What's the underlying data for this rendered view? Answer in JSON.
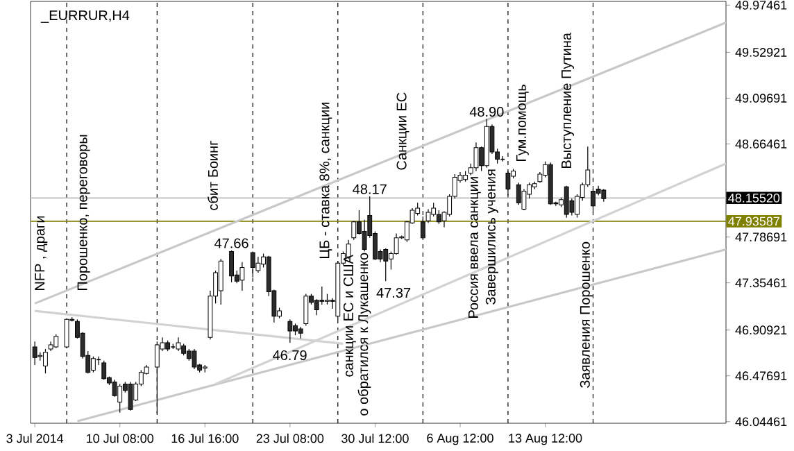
{
  "chart_data": {
    "type": "candlestick",
    "title": "_EURRUR,H4",
    "categories": [
      "3 Jul 2014",
      null,
      null,
      null,
      null,
      null,
      null,
      null,
      null,
      null,
      null,
      null,
      null,
      null,
      null,
      null,
      "10 Jul 08:00",
      null,
      null,
      null,
      null,
      null,
      null,
      null,
      null,
      null,
      null,
      null,
      null,
      null,
      null,
      null,
      "16 Jul 16:00",
      null,
      null,
      null,
      null,
      null,
      null,
      null,
      null,
      null,
      null,
      null,
      null,
      null,
      null,
      null,
      "23 Jul 08:00",
      null,
      null,
      null,
      null,
      null,
      null,
      null,
      null,
      null,
      null,
      null,
      null,
      null,
      null,
      null,
      "30 Jul 12:00",
      null,
      null,
      null,
      null,
      null,
      null,
      null,
      null,
      null,
      null,
      null,
      null,
      null,
      null,
      null,
      "6 Aug 12:00",
      null,
      null,
      null,
      null,
      null,
      null,
      null,
      null,
      null,
      null,
      null,
      null,
      null,
      null,
      null,
      "13 Aug 12:00",
      null,
      null,
      null,
      null,
      null,
      null,
      null,
      null,
      null,
      null,
      null,
      null,
      null,
      null,
      null,
      null,
      null,
      null,
      null,
      null,
      null,
      null,
      null,
      null,
      null,
      null,
      null,
      null,
      null,
      null,
      null,
      null,
      null,
      null
    ],
    "ohlc": [
      [
        46.75,
        46.8,
        46.58,
        46.65
      ],
      [
        46.66,
        46.7,
        46.62,
        46.67
      ],
      [
        46.57,
        46.73,
        46.5,
        46.7
      ],
      [
        46.73,
        46.8,
        46.71,
        46.77
      ],
      [
        46.75,
        46.87,
        46.74,
        46.85
      ],
      null,
      [
        46.75,
        47.02,
        46.74,
        47.01
      ],
      [
        47.01,
        47.03,
        46.99,
        47.0
      ],
      [
        46.99,
        47.01,
        46.83,
        46.84
      ],
      [
        46.88,
        46.89,
        46.64,
        46.66
      ],
      [
        46.67,
        46.71,
        46.5,
        46.51
      ],
      [
        46.53,
        46.66,
        46.51,
        46.64
      ],
      [
        46.63,
        46.66,
        46.58,
        46.63
      ],
      [
        46.6,
        46.62,
        46.44,
        46.45
      ],
      [
        46.46,
        46.47,
        46.39,
        46.41
      ],
      [
        46.42,
        46.44,
        46.28,
        46.29
      ],
      [
        46.23,
        46.4,
        46.13,
        46.38
      ],
      [
        46.4,
        46.42,
        46.32,
        46.34
      ],
      [
        46.4,
        46.42,
        46.15,
        46.16
      ],
      [
        46.25,
        46.42,
        46.24,
        46.4
      ],
      [
        46.4,
        46.53,
        46.38,
        46.51
      ],
      [
        46.5,
        46.58,
        46.49,
        46.56
      ],
      null,
      [
        46.56,
        46.8,
        46.12,
        46.77
      ],
      [
        46.73,
        46.84,
        46.71,
        46.79
      ],
      [
        46.79,
        46.81,
        46.71,
        46.73
      ],
      [
        46.75,
        46.78,
        46.73,
        46.75
      ],
      [
        46.73,
        46.84,
        46.71,
        46.79
      ],
      [
        46.76,
        46.78,
        46.67,
        46.69
      ],
      [
        46.71,
        46.73,
        46.62,
        46.64
      ],
      [
        46.71,
        46.73,
        46.54,
        46.56
      ],
      [
        46.58,
        46.59,
        46.51,
        46.53
      ],
      [
        46.55,
        46.58,
        46.51,
        46.56
      ],
      [
        46.84,
        47.28,
        46.82,
        47.23
      ],
      [
        47.23,
        47.47,
        47.16,
        47.45
      ],
      [
        47.28,
        47.58,
        47.15,
        47.56
      ],
      null,
      [
        47.65,
        47.66,
        47.36,
        47.42
      ],
      [
        47.43,
        47.47,
        47.35,
        47.37
      ],
      [
        47.38,
        47.55,
        47.28,
        47.5
      ],
      null,
      [
        47.64,
        47.65,
        47.41,
        47.5
      ],
      [
        47.47,
        47.6,
        47.45,
        47.54
      ],
      [
        47.53,
        47.63,
        47.5,
        47.6
      ],
      [
        47.6,
        47.61,
        47.23,
        47.27
      ],
      [
        47.28,
        47.29,
        46.98,
        47.04
      ],
      [
        47.04,
        47.12,
        47.02,
        47.09
      ],
      null,
      [
        46.99,
        47.01,
        46.79,
        46.9
      ],
      [
        46.95,
        46.97,
        46.86,
        46.9
      ],
      [
        46.92,
        46.94,
        46.83,
        46.88
      ],
      [
        46.97,
        47.25,
        46.95,
        47.23
      ],
      [
        47.23,
        47.25,
        47.15,
        47.17
      ],
      [
        47.19,
        47.2,
        47.05,
        47.1
      ],
      [
        47.19,
        47.32,
        47.15,
        47.18
      ],
      [
        47.18,
        47.25,
        47.15,
        47.19
      ],
      [
        47.19,
        47.21,
        47.11,
        47.18
      ],
      [
        47.04,
        47.56,
        47.01,
        47.54
      ],
      [
        47.54,
        47.65,
        47.52,
        47.63
      ],
      [
        47.6,
        47.76,
        47.58,
        47.72
      ],
      [
        47.78,
        47.94,
        47.76,
        47.93
      ],
      [
        47.93,
        48.04,
        47.81,
        47.82
      ],
      [
        47.84,
        47.95,
        47.65,
        47.67
      ],
      [
        47.99,
        48.17,
        47.78,
        47.8
      ],
      [
        47.82,
        47.84,
        47.57,
        47.58
      ],
      [
        47.65,
        47.67,
        47.55,
        47.58
      ],
      [
        47.67,
        47.68,
        47.37,
        47.56
      ],
      [
        47.58,
        47.65,
        47.48,
        47.63
      ],
      [
        47.63,
        47.82,
        47.62,
        47.78
      ],
      [
        47.78,
        47.8,
        47.77,
        47.79
      ],
      [
        47.76,
        47.94,
        47.74,
        47.93
      ],
      [
        47.92,
        48.06,
        47.91,
        48.04
      ],
      [
        48.01,
        48.11,
        47.99,
        48.06
      ],
      [
        47.93,
        47.98,
        47.77,
        47.78
      ],
      [
        47.94,
        48.05,
        47.92,
        48.02
      ],
      [
        48.0,
        48.11,
        47.98,
        48.06
      ],
      [
        48.0,
        48.04,
        47.91,
        47.93
      ],
      [
        47.94,
        48.03,
        47.88,
        48.02
      ],
      [
        48.0,
        48.19,
        47.98,
        48.17
      ],
      [
        48.17,
        48.38,
        48.15,
        48.35
      ],
      [
        48.32,
        48.4,
        48.3,
        48.37
      ],
      [
        48.33,
        48.41,
        48.31,
        48.37
      ],
      [
        48.39,
        48.48,
        48.37,
        48.44
      ],
      [
        48.44,
        48.68,
        48.41,
        48.63
      ],
      [
        48.63,
        48.64,
        48.41,
        48.46
      ],
      [
        48.46,
        48.9,
        48.44,
        48.83
      ],
      [
        48.83,
        48.85,
        48.57,
        48.59
      ],
      [
        48.59,
        48.62,
        48.48,
        48.52
      ],
      [
        48.52,
        48.55,
        48.5,
        48.52
      ],
      [
        48.39,
        48.41,
        48.18,
        48.24
      ],
      [
        48.36,
        48.43,
        48.34,
        48.41
      ],
      [
        48.28,
        48.3,
        48.09,
        48.11
      ],
      [
        48.05,
        48.24,
        48.04,
        48.22
      ],
      [
        48.19,
        48.3,
        48.15,
        48.28
      ],
      [
        48.26,
        48.31,
        48.24,
        48.29
      ],
      [
        48.31,
        48.4,
        48.3,
        48.38
      ],
      [
        48.37,
        48.5,
        48.35,
        48.47
      ],
      [
        48.47,
        48.49,
        48.09,
        48.1
      ],
      [
        48.11,
        48.12,
        48.08,
        48.1
      ],
      [
        48.09,
        48.16,
        48.07,
        48.14
      ],
      [
        48.26,
        48.27,
        47.97,
        48.0
      ],
      [
        48.13,
        48.15,
        47.99,
        48.02
      ],
      [
        48.0,
        48.19,
        47.97,
        48.17
      ],
      [
        48.16,
        48.3,
        48.13,
        48.28
      ],
      [
        48.28,
        48.64,
        48.26,
        48.42
      ],
      [
        48.22,
        48.24,
        48.03,
        48.08
      ],
      [
        48.24,
        48.27,
        48.18,
        48.2
      ],
      [
        48.23,
        48.24,
        48.12,
        48.15
      ],
      null,
      null,
      null,
      null,
      null,
      null,
      null,
      null,
      null,
      null,
      null,
      null,
      null,
      null,
      null,
      null,
      null,
      null,
      null,
      null,
      null,
      null,
      null
    ],
    "series": [
      {
        "type": "line",
        "color": "#c8c8c8",
        "values": [
          47.16,
          null,
          null,
          null,
          null,
          null,
          null,
          null,
          null,
          null,
          null,
          null,
          null,
          null,
          null,
          null,
          null,
          null,
          null,
          null,
          null,
          null,
          null,
          null,
          null,
          null,
          null,
          null,
          null,
          null,
          null,
          null,
          null,
          null,
          null,
          null,
          null,
          null,
          null,
          null,
          null,
          null,
          null,
          null,
          null,
          null,
          null,
          null,
          null,
          null,
          null,
          null,
          null,
          null,
          null,
          null,
          null,
          null,
          null,
          null,
          null,
          null,
          null,
          null,
          null,
          null,
          null,
          null,
          null,
          null,
          null,
          null,
          null,
          null,
          null,
          null,
          null,
          null,
          null,
          null,
          null,
          null,
          null,
          null,
          null,
          null,
          null,
          null,
          null,
          null,
          null,
          null,
          null,
          null,
          null,
          null,
          null,
          null,
          null,
          null,
          null,
          null,
          null,
          null,
          null,
          null,
          null,
          null,
          null,
          null,
          null,
          null,
          null,
          null,
          null,
          null,
          null,
          null,
          null,
          null,
          null,
          null,
          null,
          null,
          null,
          null,
          null,
          null,
          null,
          null,
          49.81
        ]
      },
      {
        "type": "line",
        "color": "#c8c8c8",
        "values": [
          null,
          null,
          null,
          null,
          null,
          null,
          null,
          null,
          46.05,
          null,
          null,
          null,
          null,
          null,
          null,
          null,
          null,
          null,
          null,
          null,
          null,
          null,
          null,
          null,
          null,
          null,
          null,
          null,
          null,
          null,
          null,
          null,
          null,
          null,
          null,
          null,
          null,
          null,
          null,
          null,
          null,
          null,
          null,
          null,
          null,
          null,
          null,
          null,
          null,
          null,
          null,
          null,
          null,
          null,
          null,
          null,
          null,
          null,
          null,
          null,
          null,
          null,
          null,
          null,
          null,
          null,
          null,
          null,
          null,
          null,
          null,
          null,
          null,
          null,
          null,
          null,
          null,
          null,
          null,
          null,
          null,
          null,
          null,
          null,
          null,
          null,
          null,
          null,
          null,
          null,
          null,
          null,
          null,
          null,
          null,
          null,
          null,
          null,
          null,
          null,
          null,
          null,
          null,
          null,
          null,
          null,
          null,
          null,
          null,
          null,
          null,
          null,
          null,
          null,
          null,
          null,
          null,
          null,
          null,
          null,
          null,
          null,
          null,
          null,
          null,
          null,
          null,
          null,
          null,
          null,
          47.67
        ]
      },
      {
        "type": "line",
        "color": "#d2d2d2",
        "values": [
          47.09,
          null,
          null,
          null,
          null,
          null,
          null,
          null,
          null,
          null,
          null,
          null,
          null,
          null,
          null,
          null,
          null,
          null,
          null,
          null,
          null,
          null,
          null,
          null,
          null,
          null,
          null,
          null,
          null,
          null,
          null,
          null,
          null,
          null,
          null,
          null,
          null,
          null,
          null,
          null,
          null,
          null,
          null,
          null,
          null,
          null,
          null,
          null,
          null,
          null,
          null,
          null,
          null,
          null,
          null,
          null,
          null,
          null,
          46.78,
          null,
          null,
          null,
          null,
          null,
          null,
          null,
          null,
          null,
          null,
          null,
          null,
          null,
          null,
          null,
          null,
          null,
          null,
          null,
          null,
          null,
          null,
          null,
          null,
          null,
          null,
          null,
          null,
          null,
          null,
          null,
          null,
          null,
          null,
          null,
          null,
          null,
          null,
          null,
          null,
          null,
          null,
          null,
          null,
          null,
          null,
          null,
          null,
          null,
          null,
          null,
          null,
          null,
          null,
          null,
          null,
          null,
          null,
          null,
          null,
          null,
          null,
          null,
          null,
          null,
          null,
          null,
          null,
          null,
          null,
          null,
          null
        ]
      },
      {
        "type": "line",
        "color": "#d2d2d2",
        "values": [
          null,
          null,
          null,
          null,
          null,
          null,
          null,
          null,
          null,
          null,
          null,
          null,
          null,
          null,
          null,
          null,
          null,
          null,
          null,
          null,
          null,
          null,
          null,
          null,
          null,
          null,
          null,
          null,
          null,
          null,
          null,
          null,
          null,
          null,
          46.4,
          null,
          null,
          null,
          null,
          null,
          null,
          null,
          null,
          null,
          null,
          null,
          null,
          null,
          null,
          null,
          null,
          null,
          null,
          null,
          null,
          null,
          null,
          null,
          null,
          null,
          null,
          null,
          null,
          null,
          null,
          null,
          null,
          null,
          null,
          null,
          null,
          null,
          null,
          null,
          null,
          null,
          null,
          null,
          null,
          null,
          null,
          null,
          null,
          null,
          null,
          null,
          null,
          null,
          null,
          null,
          null,
          null,
          null,
          null,
          null,
          null,
          null,
          null,
          null,
          null,
          null,
          null,
          null,
          null,
          null,
          null,
          null,
          null,
          null,
          null,
          null,
          null,
          null,
          null,
          null,
          null,
          null,
          null,
          null,
          null,
          null,
          null,
          null,
          null,
          null,
          null,
          null,
          null,
          null,
          null,
          48.48
        ]
      }
    ],
    "ylim": [
      46.03,
      50.01
    ],
    "yticks": [
      46.04461,
      46.47691,
      46.90921,
      47.35461,
      47.78691,
      48.66461,
      49.09691,
      49.52921,
      49.97461
    ],
    "ref_lines": [
      {
        "axis": "y",
        "value": 48.1552,
        "label": "48.15520",
        "color": "#c0c0c0",
        "line_style": "solid"
      },
      {
        "axis": "y",
        "value": 47.93587,
        "label": "47.93587",
        "color": "#808000",
        "line_style": "solid"
      }
    ],
    "annotations": [
      "NFP , драги",
      "Порошенко, переговоры",
      "сбит Боинг",
      "ЦБ - ставка 8%, санкции",
      "санкции ЕС и США",
      "о обратился к Лукашенко",
      "Санкции ЕС",
      "Россия ввела санкции",
      "Завершились учения",
      "Гум.помощь",
      "Выступление Путина",
      "Заявления Порошенко",
      {
        "text": "47.66",
        "y": 47.66
      },
      "46.79",
      {
        "text": "48.17",
        "y": 48.17
      },
      "47.37",
      {
        "text": "48.90",
        "y": 48.9
      }
    ]
  }
}
